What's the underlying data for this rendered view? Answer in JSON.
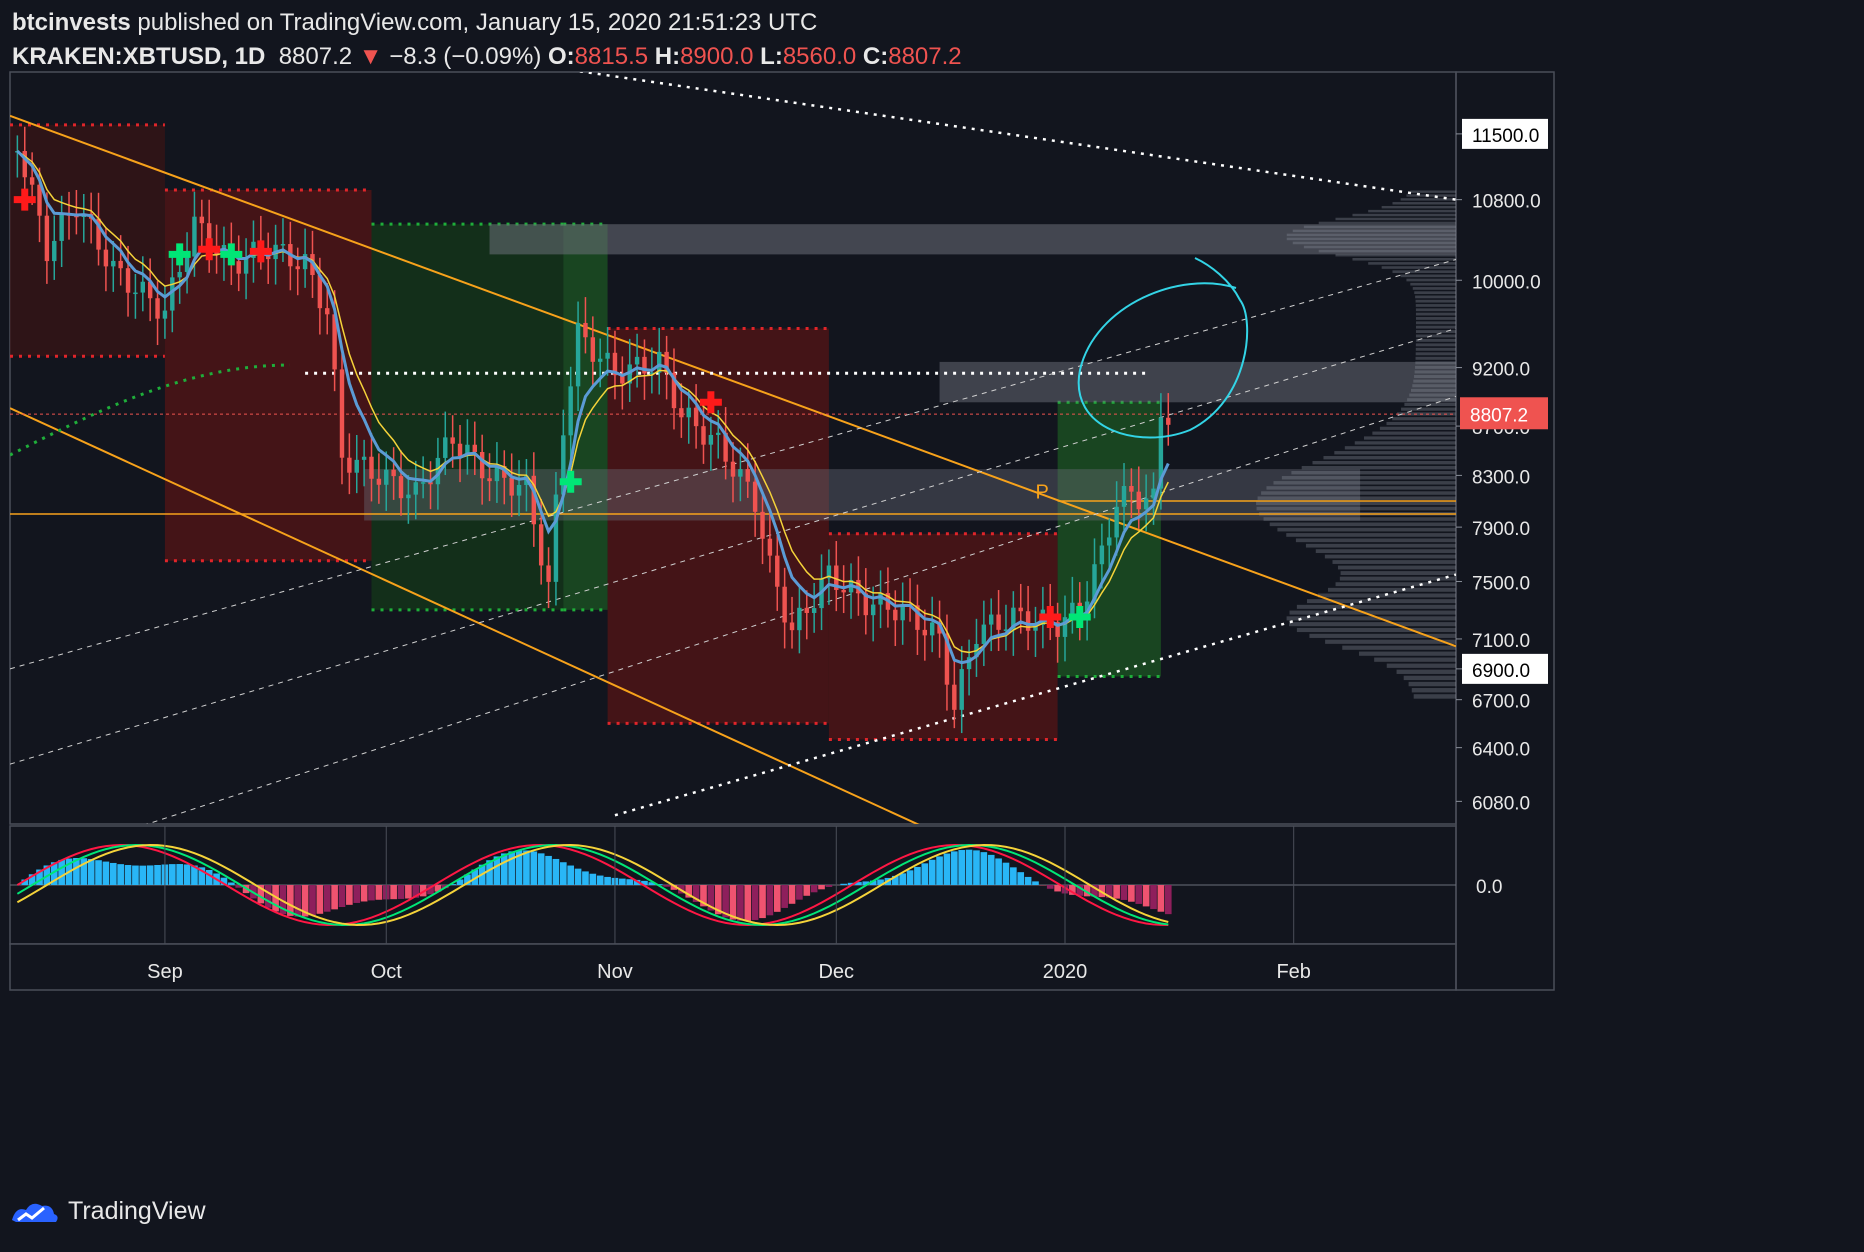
{
  "header": {
    "author": "btcinvests",
    "published": "published on TradingView.com, January 15, 2020 21:51:23 UTC",
    "symbol": "KRAKEN:XBTUSD, 1D",
    "last": "8807.2",
    "change_arrow": "▼",
    "change": "−8.3 (−0.09%)",
    "open_label": "O:",
    "open": "8815.5",
    "high_label": "H:",
    "high": "8900.0",
    "low_label": "L:",
    "low": "8560.0",
    "close_label": "C:",
    "close": "8807.2"
  },
  "footer": {
    "brand": "TradingView",
    "logo_icon": "tradingview-logo-icon"
  },
  "colors": {
    "background": "#12151e",
    "up": "#26a69a",
    "down": "#ef5350",
    "trendline": "#f7a21b",
    "ema_fast": "#5b9bd5",
    "ema_slow": "#f5d33a",
    "buy_marker": "#00e676",
    "sell_marker": "#ff1a1a",
    "circle": "#33d4e6"
  },
  "chart_data": [
    {
      "type": "candlestick",
      "symbol": "KRAKEN:XBTUSD",
      "interval": "1D",
      "x_tick_labels": [
        "Sep",
        "Oct",
        "Nov",
        "Dec",
        "2020",
        "Feb"
      ],
      "y_tick_labels": [
        "11500.0",
        "10800.0",
        "10000.0",
        "9200.0",
        "8700.0",
        "8300.0",
        "7900.0",
        "7500.0",
        "7100.0",
        "6900.0",
        "6700.0",
        "6400.0",
        "6080.0"
      ],
      "y_scale": "log",
      "ylim": [
        5950,
        12200
      ],
      "last_price_label": "8807.2",
      "annotations": [
        "P"
      ],
      "trend_closes": [
        [
          "2019-08-12",
          11400
        ],
        [
          "2019-08-16",
          10300
        ],
        [
          "2019-08-20",
          10750
        ],
        [
          "2019-08-25",
          10100
        ],
        [
          "2019-09-01",
          9700
        ],
        [
          "2019-09-05",
          10550
        ],
        [
          "2019-09-10",
          10150
        ],
        [
          "2019-09-15",
          10320
        ],
        [
          "2019-09-20",
          10150
        ],
        [
          "2019-09-23",
          9700
        ],
        [
          "2019-09-25",
          8450
        ],
        [
          "2019-09-30",
          8300
        ],
        [
          "2019-10-05",
          8150
        ],
        [
          "2019-10-10",
          8600
        ],
        [
          "2019-10-15",
          8300
        ],
        [
          "2019-10-20",
          8200
        ],
        [
          "2019-10-23",
          7450
        ],
        [
          "2019-10-25",
          8700
        ],
        [
          "2019-10-27",
          9500
        ],
        [
          "2019-11-01",
          9150
        ],
        [
          "2019-11-07",
          9250
        ],
        [
          "2019-11-10",
          8800
        ],
        [
          "2019-11-15",
          8550
        ],
        [
          "2019-11-20",
          8100
        ],
        [
          "2019-11-22",
          7600
        ],
        [
          "2019-11-25",
          7150
        ],
        [
          "2019-11-30",
          7550
        ],
        [
          "2019-12-05",
          7350
        ],
        [
          "2019-12-10",
          7300
        ],
        [
          "2019-12-15",
          7100
        ],
        [
          "2019-12-17",
          6650
        ],
        [
          "2019-12-20",
          7150
        ],
        [
          "2019-12-25",
          7250
        ],
        [
          "2019-12-31",
          7200
        ],
        [
          "2020-01-03",
          7300
        ],
        [
          "2020-01-06",
          7700
        ],
        [
          "2020-01-08",
          8100
        ],
        [
          "2020-01-10",
          8150
        ],
        [
          "2020-01-13",
          8100
        ],
        [
          "2020-01-14",
          8800
        ],
        [
          "2020-01-15",
          8807.2
        ]
      ]
    },
    {
      "type": "histogram",
      "title": "oscillator",
      "y_tick_labels": [
        "0.0"
      ]
    }
  ]
}
